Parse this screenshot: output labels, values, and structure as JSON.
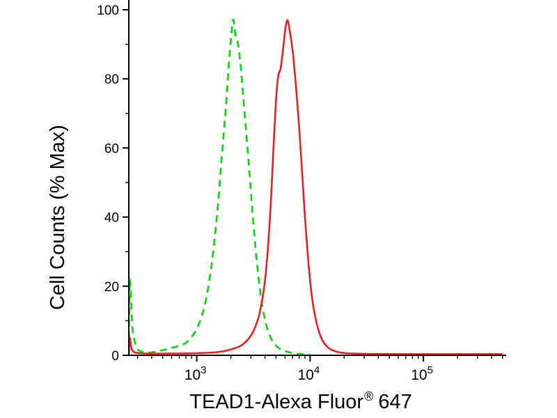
{
  "chart_data": {
    "type": "line",
    "title": "",
    "xlabel": "TEAD1-Alexa Fluor® 647",
    "xlabel_parts": {
      "main": "TEAD1-Alexa Fluor",
      "sup": "®",
      "tail": "647"
    },
    "ylabel": "Cell Counts (% Max)",
    "x_scale": "log10",
    "x_range_log10": [
      2.4,
      5.7
    ],
    "ylim": [
      0,
      100
    ],
    "grid": false,
    "legend": "none",
    "axis_color": "#000000",
    "y_major_ticks": [
      0,
      20,
      40,
      60,
      80,
      100
    ],
    "y_minor_step": 10,
    "x_major_ticks": [
      {
        "log10": 3,
        "base": "10",
        "exp": "3"
      },
      {
        "log10": 4,
        "base": "10",
        "exp": "4"
      },
      {
        "log10": 5,
        "base": "10",
        "exp": "5"
      }
    ],
    "series": [
      {
        "name": "green-dashed",
        "slug": "green-dashed-curve",
        "color": "#00d800",
        "dash": "10 7",
        "width": 2.6,
        "peak_log10x": 3.32,
        "peak_y": 97,
        "points_log10x_y": [
          [
            2.4,
            1.5
          ],
          [
            2.41,
            22
          ],
          [
            2.43,
            9
          ],
          [
            2.46,
            3
          ],
          [
            2.5,
            1.2
          ],
          [
            2.58,
            0.8
          ],
          [
            2.66,
            1.2
          ],
          [
            2.74,
            1.8
          ],
          [
            2.82,
            2.5
          ],
          [
            2.9,
            3.5
          ],
          [
            2.97,
            6
          ],
          [
            3.03,
            10
          ],
          [
            3.08,
            16
          ],
          [
            3.13,
            26
          ],
          [
            3.18,
            41
          ],
          [
            3.22,
            57
          ],
          [
            3.26,
            73
          ],
          [
            3.29,
            87
          ],
          [
            3.32,
            97
          ],
          [
            3.34,
            93
          ],
          [
            3.36,
            91
          ],
          [
            3.39,
            83
          ],
          [
            3.42,
            71
          ],
          [
            3.46,
            55
          ],
          [
            3.5,
            38
          ],
          [
            3.54,
            24
          ],
          [
            3.58,
            14
          ],
          [
            3.62,
            8
          ],
          [
            3.67,
            4
          ],
          [
            3.73,
            2
          ],
          [
            3.8,
            1
          ],
          [
            3.9,
            0.4
          ],
          [
            4.0,
            0.2
          ]
        ]
      },
      {
        "name": "red-solid",
        "slug": "red-solid-curve",
        "color": "#e62020",
        "dash": "",
        "width": 2.6,
        "peak_log10x": 3.8,
        "peak_y": 97,
        "points_log10x_y": [
          [
            2.4,
            0.3
          ],
          [
            2.41,
            5
          ],
          [
            2.43,
            1.5
          ],
          [
            2.5,
            0.6
          ],
          [
            2.7,
            0.5
          ],
          [
            3.0,
            0.6
          ],
          [
            3.2,
            1
          ],
          [
            3.33,
            2
          ],
          [
            3.42,
            3.5
          ],
          [
            3.5,
            7
          ],
          [
            3.56,
            13
          ],
          [
            3.61,
            24
          ],
          [
            3.65,
            42
          ],
          [
            3.68,
            62
          ],
          [
            3.7,
            74
          ],
          [
            3.72,
            81
          ],
          [
            3.74,
            83
          ],
          [
            3.76,
            88
          ],
          [
            3.78,
            94
          ],
          [
            3.8,
            97
          ],
          [
            3.82,
            94
          ],
          [
            3.85,
            87
          ],
          [
            3.88,
            76
          ],
          [
            3.91,
            63
          ],
          [
            3.945,
            45
          ],
          [
            3.98,
            29
          ],
          [
            4.02,
            16
          ],
          [
            4.06,
            9
          ],
          [
            4.1,
            5
          ],
          [
            4.15,
            2.5
          ],
          [
            4.22,
            1.2
          ],
          [
            4.32,
            0.6
          ],
          [
            4.5,
            0.4
          ],
          [
            4.8,
            0.35
          ],
          [
            5.2,
            0.35
          ],
          [
            5.7,
            0.35
          ]
        ]
      }
    ]
  }
}
